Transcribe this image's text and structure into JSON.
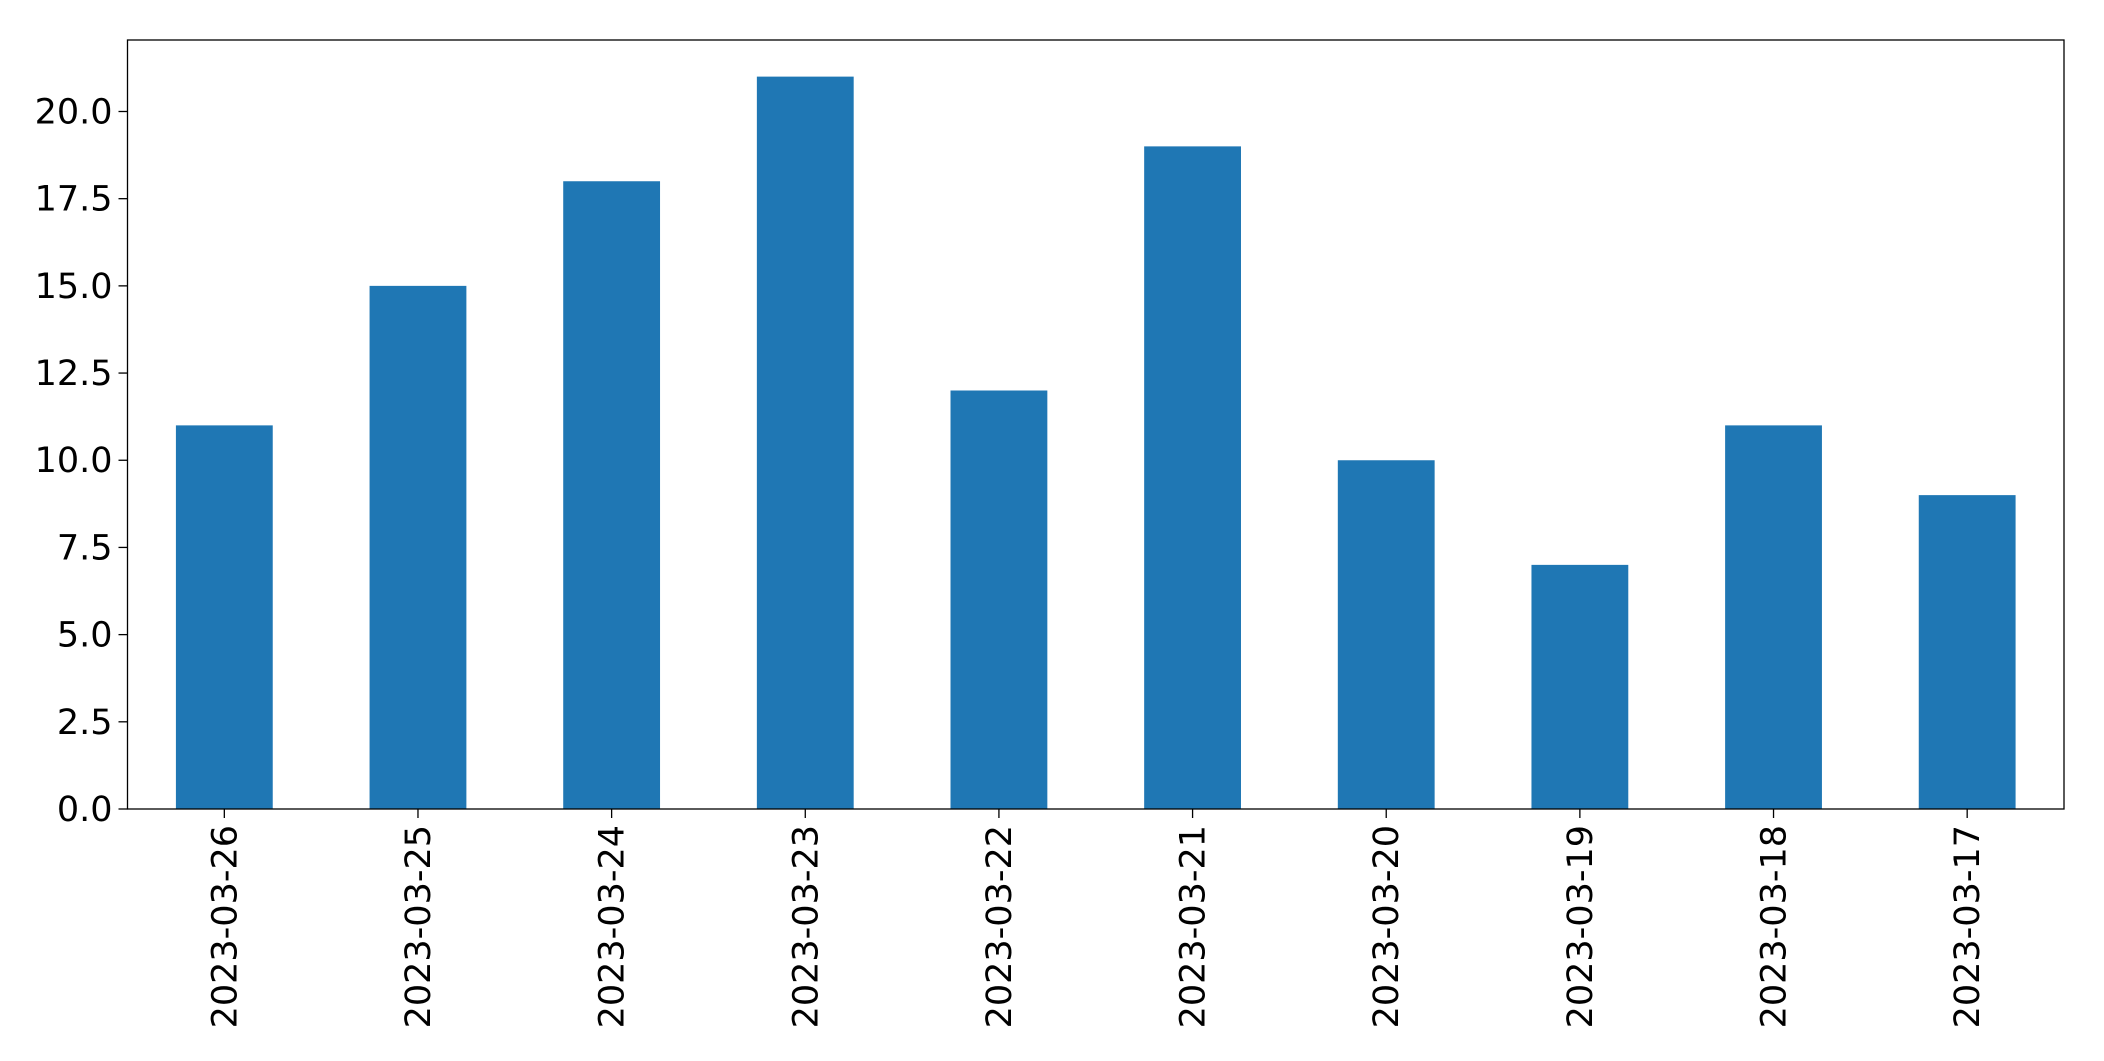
{
  "chart_data": {
    "type": "bar",
    "categories": [
      "2023-03-26",
      "2023-03-25",
      "2023-03-24",
      "2023-03-23",
      "2023-03-22",
      "2023-03-21",
      "2023-03-20",
      "2023-03-19",
      "2023-03-18",
      "2023-03-17"
    ],
    "values": [
      11,
      15,
      18,
      21,
      12,
      19,
      10,
      7,
      11,
      9
    ],
    "color": "#1f77b4",
    "ylim": [
      0,
      22.05
    ],
    "yticks": [
      {
        "value": 0,
        "label": "0.0"
      },
      {
        "value": 2.5,
        "label": "2.5"
      },
      {
        "value": 5,
        "label": "5.0"
      },
      {
        "value": 7.5,
        "label": "7.5"
      },
      {
        "value": 10,
        "label": "10.0"
      },
      {
        "value": 12.5,
        "label": "12.5"
      },
      {
        "value": 15,
        "label": "15.0"
      },
      {
        "value": 17.5,
        "label": "17.5"
      },
      {
        "value": 20,
        "label": "20.0"
      }
    ],
    "grid": false
  }
}
